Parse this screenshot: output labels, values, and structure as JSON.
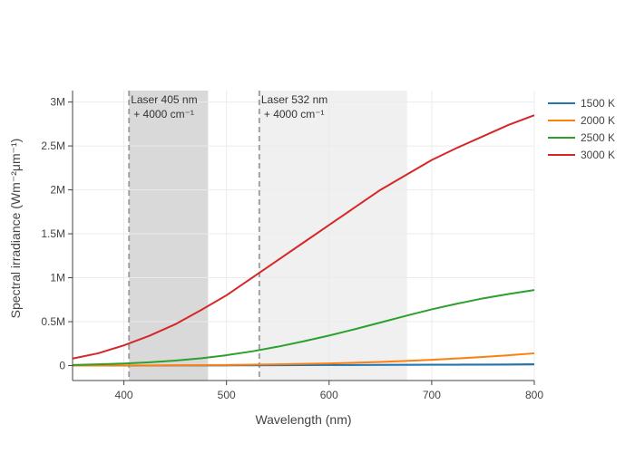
{
  "chart_data": {
    "type": "line",
    "xlabel": "Wavelength (nm)",
    "ylabel": "Spectral irradiance (Wm⁻²μm⁻¹)",
    "xlim": [
      350,
      800
    ],
    "ylim": [
      -170000,
      3130000
    ],
    "x_ticks": [
      400,
      500,
      600,
      700,
      800
    ],
    "y_ticks": [
      0,
      500000,
      1000000,
      1500000,
      2000000,
      2500000,
      3000000
    ],
    "y_tick_labels": [
      "0",
      "0.5M",
      "1M",
      "1.5M",
      "2M",
      "2.5M",
      "3M"
    ],
    "grid": true,
    "legend_position": "top-right",
    "x": [
      350,
      375,
      400,
      425,
      450,
      475,
      500,
      525,
      550,
      575,
      600,
      625,
      650,
      675,
      700,
      725,
      750,
      775,
      800
    ],
    "series": [
      {
        "name": "1500 K",
        "color": "#1f77b4",
        "values": [
          0,
          0,
          0,
          0,
          1000,
          1000,
          2000,
          3000,
          4000,
          5000,
          6000,
          7000,
          8000,
          9000,
          10000,
          11000,
          12000,
          13000,
          15000
        ]
      },
      {
        "name": "2000 K",
        "color": "#ff7f0e",
        "values": [
          300,
          600,
          1000,
          2000,
          3000,
          5000,
          7000,
          10000,
          14000,
          19000,
          25000,
          33000,
          42000,
          53000,
          66000,
          81000,
          98000,
          117000,
          140000
        ]
      },
      {
        "name": "2500 K",
        "color": "#2ca02c",
        "values": [
          7000,
          14000,
          24000,
          38000,
          57000,
          83000,
          118000,
          162000,
          215000,
          276000,
          342000,
          414000,
          490000,
          567000,
          640000,
          705000,
          765000,
          815000,
          860000
        ]
      },
      {
        "name": "3000 K",
        "color": "#d62728",
        "values": [
          80000,
          140000,
          230000,
          340000,
          470000,
          630000,
          800000,
          1000000,
          1200000,
          1400000,
          1600000,
          1800000,
          2000000,
          2170000,
          2340000,
          2480000,
          2610000,
          2740000,
          2850000
        ]
      }
    ],
    "shapes": [
      {
        "type": "band",
        "x0": 405,
        "x1": 482,
        "color": "#d9d9d9"
      },
      {
        "type": "band",
        "x0": 532,
        "x1": 676,
        "color": "#f0f0f0"
      },
      {
        "type": "vline",
        "x": 405,
        "color": "#a0a0a0"
      },
      {
        "type": "vline",
        "x": 532,
        "color": "#a0a0a0"
      }
    ],
    "annotations": [
      {
        "x": 405,
        "lines": [
          "Laser 405 nm",
          "+ 4000 cm⁻¹"
        ]
      },
      {
        "x": 532,
        "lines": [
          "Laser 532 nm",
          "+ 4000 cm⁻¹"
        ]
      }
    ]
  }
}
